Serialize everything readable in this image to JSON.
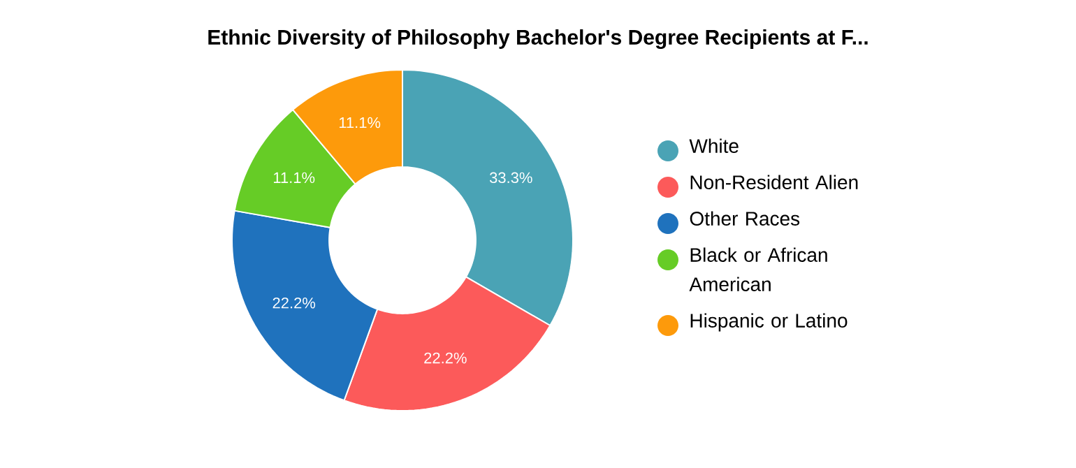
{
  "chart_data": {
    "type": "donut",
    "title": "Ethnic Diversity of Philosophy Bachelor's Degree Recipients at F...",
    "categories": [
      "White",
      "Non-Resident Alien",
      "Other Races",
      "Black or African American",
      "Hispanic or Latino"
    ],
    "values": [
      33.3,
      22.2,
      22.2,
      11.1,
      11.1
    ],
    "value_labels": [
      "33.3%",
      "22.2%",
      "22.2%",
      "11.1%",
      "11.1%"
    ],
    "colors": [
      "#4aa3b5",
      "#fc5a5a",
      "#1f72bd",
      "#66cc26",
      "#fd9a0b"
    ],
    "legend": "right"
  }
}
